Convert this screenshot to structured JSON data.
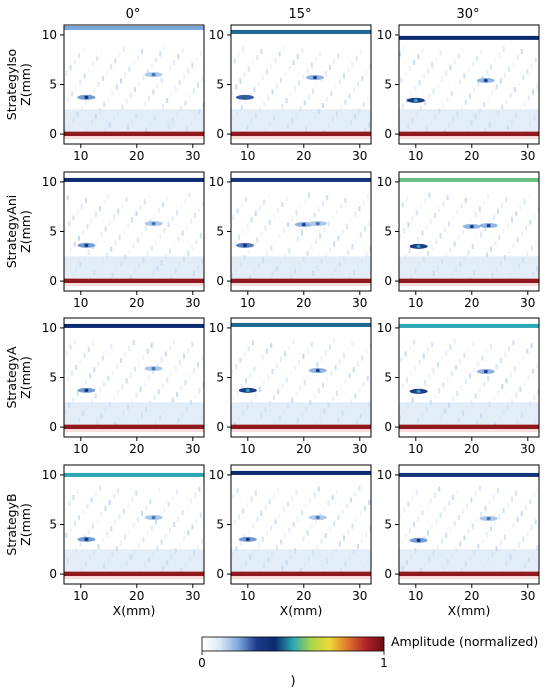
{
  "figure": {
    "column_titles": [
      "0°",
      "15°",
      "30°"
    ],
    "row_labels": [
      "StrategyIso",
      "StrategyAni",
      "StrategyA",
      "StrategyB"
    ],
    "footer_text": ")"
  },
  "chart_data": {
    "type": "heatmap",
    "layout": "4x3 grid of B-scan images",
    "xlabel": "X(mm)",
    "ylabel": "Z(mm)",
    "xlim": [
      7,
      32
    ],
    "ylim": [
      -1,
      11
    ],
    "xticks": [
      10,
      20,
      30
    ],
    "yticks": [
      0,
      5,
      10
    ],
    "grid": false,
    "colorbar": {
      "label": "Amplitude (normalized)",
      "min": 0,
      "max": 1,
      "ticks": [
        0,
        1
      ],
      "colormap": [
        "#ffffff",
        "#dce8f7",
        "#7aa8dc",
        "#1e3a8a",
        "#0b2a6f",
        "#2aa7b5",
        "#a8d84a",
        "#f0d83a",
        "#e0772a",
        "#b0242a",
        "#6e0d12"
      ]
    },
    "columns": [
      "0°",
      "15°",
      "30°"
    ],
    "rows": [
      "StrategyIso",
      "StrategyAni",
      "StrategyA",
      "StrategyB"
    ],
    "panels": [
      {
        "row": "StrategyIso",
        "column": "0°",
        "top_echo_z": 10.7,
        "top_echo_amp": 0.2,
        "bottom_echo_z": 0.0,
        "bottom_echo_amp": 0.95,
        "defects": [
          {
            "x": 11,
            "z": 3.7,
            "amp": 0.35
          },
          {
            "x": 23,
            "z": 6.0,
            "amp": 0.25
          }
        ]
      },
      {
        "row": "StrategyIso",
        "column": "15°",
        "top_echo_z": 10.3,
        "top_echo_amp": 0.45,
        "bottom_echo_z": 0.0,
        "bottom_echo_amp": 0.95,
        "defects": [
          {
            "x": 9.5,
            "z": 3.7,
            "amp": 0.45
          },
          {
            "x": 22,
            "z": 5.7,
            "amp": 0.3
          }
        ]
      },
      {
        "row": "StrategyIso",
        "column": "30°",
        "top_echo_z": 9.7,
        "top_echo_amp": 0.4,
        "bottom_echo_z": 0.0,
        "bottom_echo_amp": 0.95,
        "defects": [
          {
            "x": 10,
            "z": 3.4,
            "amp": 0.5
          },
          {
            "x": 22.5,
            "z": 5.4,
            "amp": 0.3
          }
        ]
      },
      {
        "row": "StrategyAni",
        "column": "0°",
        "top_echo_z": 10.2,
        "top_echo_amp": 0.4,
        "bottom_echo_z": 0.0,
        "bottom_echo_amp": 0.95,
        "defects": [
          {
            "x": 11,
            "z": 3.6,
            "amp": 0.35
          },
          {
            "x": 23,
            "z": 5.8,
            "amp": 0.25
          }
        ]
      },
      {
        "row": "StrategyAni",
        "column": "15°",
        "top_echo_z": 10.2,
        "top_echo_amp": 0.35,
        "bottom_echo_z": 0.0,
        "bottom_echo_amp": 0.95,
        "defects": [
          {
            "x": 9.5,
            "z": 3.6,
            "amp": 0.4
          },
          {
            "x": 20,
            "z": 5.7,
            "amp": 0.3
          },
          {
            "x": 22.5,
            "z": 5.8,
            "amp": 0.25
          }
        ]
      },
      {
        "row": "StrategyAni",
        "column": "30°",
        "top_echo_z": 10.2,
        "top_echo_amp": 0.55,
        "bottom_echo_z": 0.0,
        "bottom_echo_amp": 0.95,
        "defects": [
          {
            "x": 10.5,
            "z": 3.5,
            "amp": 0.5
          },
          {
            "x": 20,
            "z": 5.5,
            "amp": 0.3
          },
          {
            "x": 23,
            "z": 5.6,
            "amp": 0.3
          }
        ]
      },
      {
        "row": "StrategyA",
        "column": "0°",
        "top_echo_z": 10.2,
        "top_echo_amp": 0.4,
        "bottom_echo_z": 0.0,
        "bottom_echo_amp": 0.95,
        "defects": [
          {
            "x": 11,
            "z": 3.7,
            "amp": 0.35
          },
          {
            "x": 23,
            "z": 5.9,
            "amp": 0.25
          }
        ]
      },
      {
        "row": "StrategyA",
        "column": "15°",
        "top_echo_z": 10.3,
        "top_echo_amp": 0.45,
        "bottom_echo_z": 0.0,
        "bottom_echo_amp": 0.95,
        "defects": [
          {
            "x": 10,
            "z": 3.7,
            "amp": 0.5
          },
          {
            "x": 22.5,
            "z": 5.7,
            "amp": 0.3
          }
        ]
      },
      {
        "row": "StrategyA",
        "column": "30°",
        "top_echo_z": 10.2,
        "top_echo_amp": 0.5,
        "bottom_echo_z": 0.0,
        "bottom_echo_amp": 0.95,
        "defects": [
          {
            "x": 10.5,
            "z": 3.6,
            "amp": 0.5
          },
          {
            "x": 22.5,
            "z": 5.6,
            "amp": 0.3
          }
        ]
      },
      {
        "row": "StrategyB",
        "column": "0°",
        "top_echo_z": 10.0,
        "top_echo_amp": 0.5,
        "bottom_echo_z": 0.0,
        "bottom_echo_amp": 0.95,
        "defects": [
          {
            "x": 11,
            "z": 3.5,
            "amp": 0.35
          },
          {
            "x": 23,
            "z": 5.7,
            "amp": 0.25
          }
        ]
      },
      {
        "row": "StrategyB",
        "column": "15°",
        "top_echo_z": 10.2,
        "top_echo_amp": 0.4,
        "bottom_echo_z": 0.0,
        "bottom_echo_amp": 0.95,
        "defects": [
          {
            "x": 10,
            "z": 3.5,
            "amp": 0.35
          },
          {
            "x": 22.5,
            "z": 5.7,
            "amp": 0.25
          }
        ]
      },
      {
        "row": "StrategyB",
        "column": "30°",
        "top_echo_z": 10.0,
        "top_echo_amp": 0.35,
        "bottom_echo_z": 0.0,
        "bottom_echo_amp": 0.95,
        "defects": [
          {
            "x": 10.5,
            "z": 3.4,
            "amp": 0.35
          },
          {
            "x": 23,
            "z": 5.6,
            "amp": 0.25
          }
        ]
      }
    ]
  }
}
